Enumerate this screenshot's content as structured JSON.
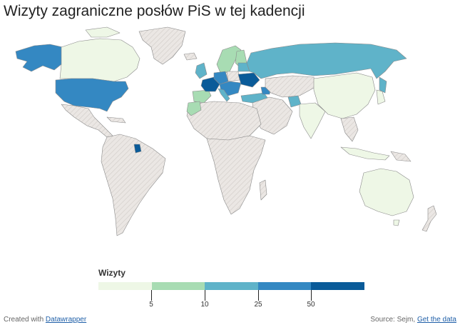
{
  "title": "Wizyty zagraniczne posłów PiS w tej kadencji",
  "legend": {
    "title": "Wizyty",
    "colors": [
      "#eef7e6",
      "#a8dcb3",
      "#5fb3c9",
      "#3488c2",
      "#0a5b99"
    ],
    "ticks": [
      "5",
      "10",
      "25",
      "50"
    ]
  },
  "no_data_color": "#e6e2df",
  "footer": {
    "created_with": "Created with",
    "created_link": "Datawrapper",
    "source": "Source: Sejm,",
    "get_data": "Get the data"
  }
}
